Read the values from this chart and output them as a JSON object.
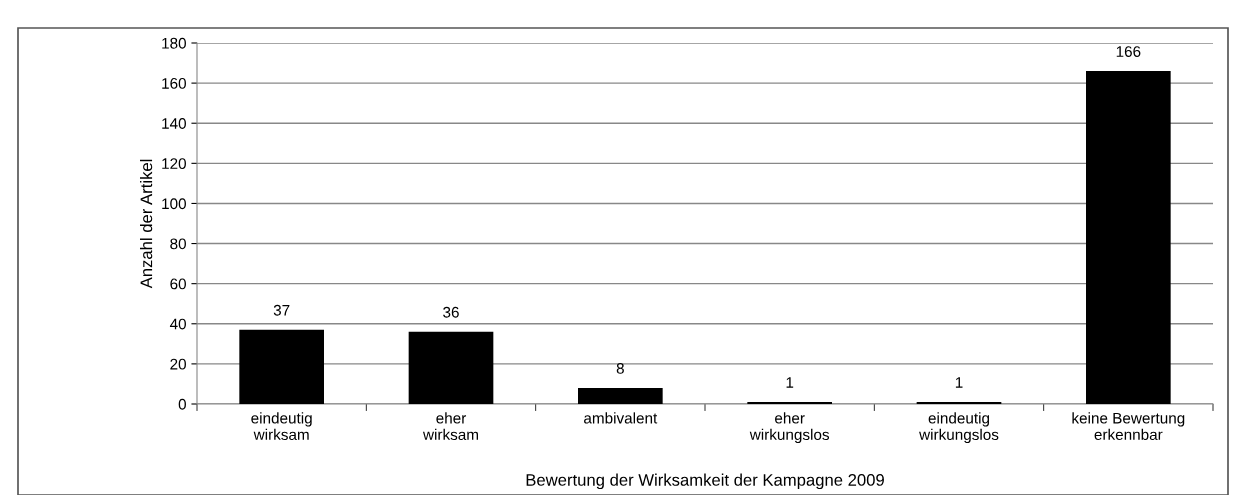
{
  "chart_data": {
    "type": "bar",
    "xlabel": "Bewertung der Wirksamkeit der Kampagne 2009",
    "ylabel": "Anzahl der Artikel",
    "categories": [
      "eindeutig\nwirksam",
      "eher\nwirksam",
      "ambivalent",
      "eher\nwirkungslos",
      "eindeutig\nwirkungslos",
      "keine Bewertung\nerkennbar"
    ],
    "values": [
      37,
      36,
      8,
      1,
      1,
      166
    ],
    "color": "#000000",
    "ylim": [
      0,
      180
    ],
    "yticks": [
      0,
      20,
      40,
      60,
      80,
      100,
      120,
      140,
      160,
      180
    ],
    "grid": "y",
    "data_labels": true
  }
}
